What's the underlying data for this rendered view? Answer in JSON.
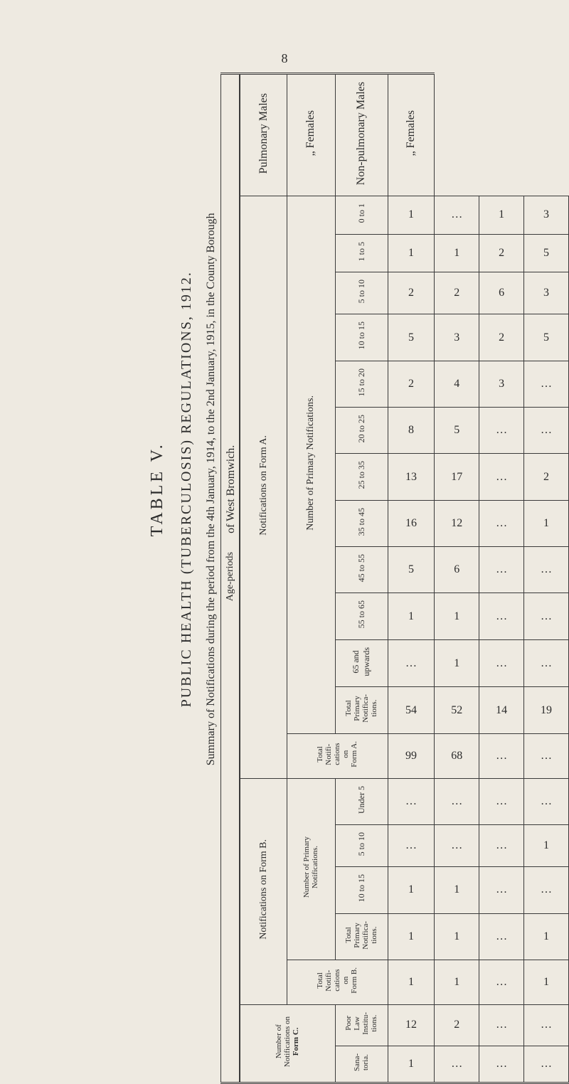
{
  "page_number": "8",
  "vtitle": {
    "main": "TABLE V.",
    "sub": "PUBLIC HEALTH (TUBERCULOSIS) REGULATIONS, 1912.",
    "detail": "Summary of Notifications during the period from the 4th January, 1914, to the 2nd January, 1915, in the County Borough",
    "of": "of West Bromwich."
  },
  "row_labels": {
    "r1": "Pulmonary Males",
    "r2": "„     Females",
    "r3": "Non-pulmonary Males",
    "r4": "„     Females"
  },
  "age_periods_label": "Age-periods",
  "form_a_label": "Notifications on Form A.",
  "form_b_label": "Notifications on Form B.",
  "form_c_top": "Number of",
  "form_c_mid1": "Notifications on",
  "form_c_mid2": "Form C.",
  "prim_a_label": "Number of Primary Notifications.",
  "prim_b_label": "Number of Primary\nNotifications.",
  "total_a_label": "Total\nNotifi-\ncations\non\nForm A.",
  "total_b_label": "Total\nNotifi-\ncations\non\nForm B.",
  "poor_law_label": "Poor\nLaw\nInstitu-\ntions.",
  "sana_label": "Sana-\ntoria.",
  "ages": {
    "a1": "0 to 1",
    "a2": "1 to 5",
    "a3": "5 to 10",
    "a4": "10 to 15",
    "a5": "15 to 20",
    "a6": "20 to 25",
    "a7": "25 to 35",
    "a8": "35 to 45",
    "a9": "45 to 55",
    "a10": "55 to 65",
    "a11": "65 and\nupwards",
    "a12": "Total\nPrimary\nNotifica-\ntions."
  },
  "ages_b": {
    "b1": "Under 5",
    "b2": "5 to 10",
    "b3": "10 to 15",
    "b4": "Total\nPrimary\nNotifica-\ntions."
  },
  "data_a": {
    "r1": [
      "1",
      "1",
      "2",
      "5",
      "2",
      "8",
      "13",
      "16",
      "5",
      "1",
      "…",
      "54"
    ],
    "r2": [
      "…",
      "1",
      "2",
      "3",
      "4",
      "5",
      "17",
      "12",
      "6",
      "1",
      "1",
      "52"
    ],
    "r3": [
      "1",
      "2",
      "6",
      "2",
      "3",
      "…",
      "…",
      "…",
      "…",
      "…",
      "…",
      "14"
    ],
    "r4": [
      "3",
      "5",
      "3",
      "5",
      "…",
      "…",
      "2",
      "1",
      "…",
      "…",
      "…",
      "19"
    ]
  },
  "tot_a": {
    "r1": "99",
    "r2": "68",
    "r3": "…",
    "r4": "…"
  },
  "data_b": {
    "r1": [
      "…",
      "…",
      "1",
      "1"
    ],
    "r2": [
      "…",
      "…",
      "1",
      "1"
    ],
    "r3": [
      "…",
      "…",
      "…",
      "…"
    ],
    "r4": [
      "…",
      "1",
      "…",
      "1"
    ]
  },
  "tot_b": {
    "r1": "1",
    "r2": "1",
    "r3": "…",
    "r4": "1"
  },
  "data_c": {
    "poor": {
      "r1": "12",
      "r2": "2",
      "r3": "…",
      "r4": "…"
    },
    "sana": {
      "r1": "1",
      "r2": "…",
      "r3": "…",
      "r4": "…"
    }
  },
  "colors": {
    "bg": "#eeeae1",
    "ink": "#2b2b2b",
    "rule": "#3a3a3a"
  }
}
